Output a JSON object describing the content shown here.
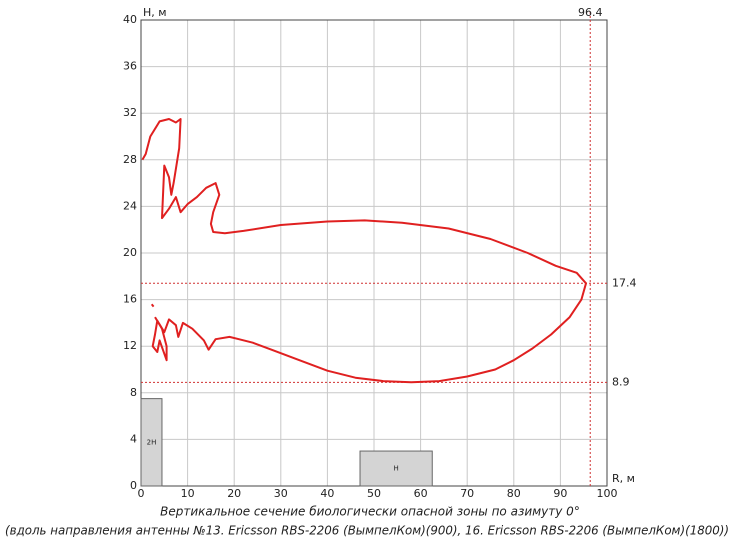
{
  "chart_data": {
    "type": "line",
    "title": "Вертикальное сечение биологически опасной зоны по азимуту 0°",
    "subtitle": "(вдоль направления антенны №13. Ericsson RBS-2206 (ВымпелКом)(900), 16. Ericsson RBS-2206 (ВымпелКом)(1800))",
    "x_label": "R, м",
    "y_label": "H, м",
    "xlim": [
      0,
      100
    ],
    "xticks": [
      0,
      10,
      20,
      30,
      40,
      50,
      60,
      70,
      80,
      90,
      100
    ],
    "ylim": [
      0,
      40
    ],
    "yticks": [
      0,
      4,
      8,
      12,
      16,
      20,
      24,
      28,
      32,
      36,
      40
    ],
    "grid": true,
    "vlines": [
      96.4
    ],
    "hlines": [
      17.4,
      8.9
    ],
    "buildings": [
      {
        "label": "2Н",
        "x": [
          0,
          4.5
        ],
        "height": 7.5
      },
      {
        "label": "Н",
        "x": [
          47,
          62.5
        ],
        "height": 3
      }
    ],
    "series": [
      {
        "color": "#e02020",
        "x": [
          0.3,
          1,
          2,
          4,
          6,
          7.5,
          8.5,
          8.2,
          7,
          6.5,
          6,
          5,
          4.5,
          6,
          7.5,
          8.5,
          10,
          12,
          14,
          16,
          16.8,
          15.5,
          15,
          15.5,
          18,
          22,
          30,
          40,
          48,
          56,
          66,
          75,
          83,
          89,
          93.5,
          95.5,
          94.5,
          92,
          88,
          84,
          80,
          76,
          70,
          64,
          58,
          52,
          46,
          40,
          34,
          28,
          24,
          21,
          19,
          16,
          14.5,
          13.5,
          11,
          9,
          8,
          7.5,
          6,
          5,
          3.5,
          3,
          2.5,
          3.5,
          4,
          5.5,
          5.5,
          4.5,
          3,
          null,
          2.3,
          2.7
        ],
        "values": [
          28,
          28.5,
          30,
          31.3,
          31.5,
          31.2,
          31.5,
          29,
          26,
          25,
          26.5,
          27.5,
          23,
          23.8,
          24.8,
          23.5,
          24.2,
          24.8,
          25.6,
          26,
          25,
          23.5,
          22.5,
          21.8,
          21.7,
          21.9,
          22.4,
          22.7,
          22.8,
          22.6,
          22.1,
          21.2,
          20,
          18.9,
          18.3,
          17.4,
          16,
          14.5,
          13,
          11.8,
          10.8,
          10,
          9.4,
          9,
          8.9,
          9,
          9.3,
          9.9,
          10.8,
          11.7,
          12.3,
          12.6,
          12.8,
          12.6,
          11.7,
          12.5,
          13.5,
          14,
          12.8,
          13.8,
          14.3,
          13.2,
          14.2,
          13,
          12,
          11.5,
          12.5,
          10.8,
          12,
          13.5,
          14.5,
          null,
          15.6,
          15.4
        ]
      }
    ]
  }
}
